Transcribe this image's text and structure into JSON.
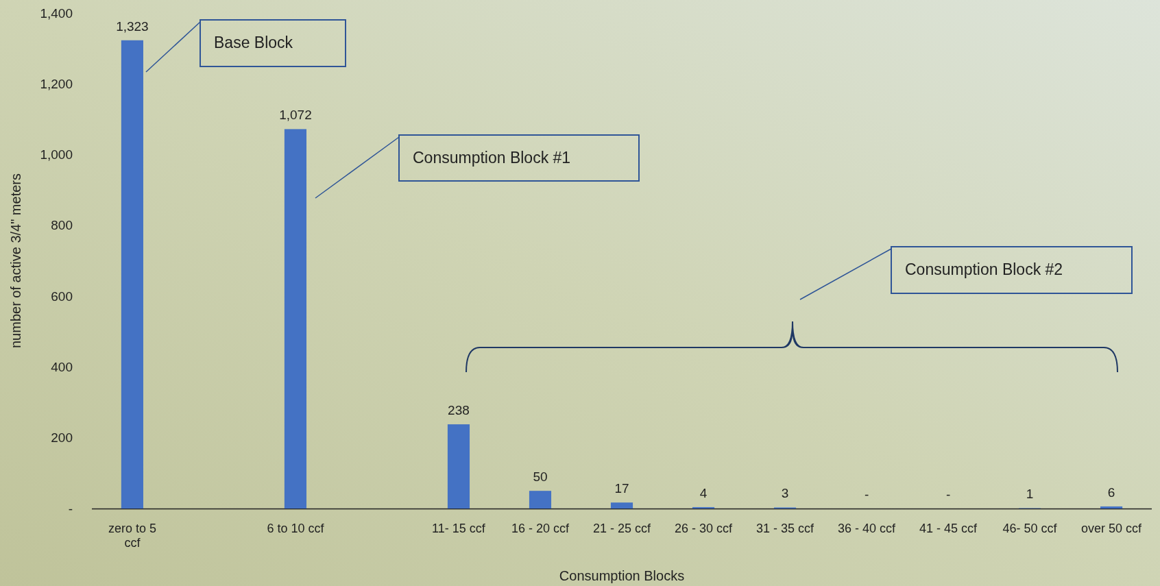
{
  "chart_data": {
    "type": "bar",
    "xlabel": "Consumption Blocks",
    "ylabel": "number of active 3/4\" meters",
    "categories": [
      "zero to 5 ccf",
      null,
      "6 to 10 ccf",
      null,
      "11- 15 ccf",
      "16 - 20 ccf",
      "21 - 25 ccf",
      "26 - 30 ccf",
      "31 - 35  ccf",
      "36 - 40 ccf",
      "41 - 45 ccf",
      "46- 50 ccf",
      "over 50 ccf"
    ],
    "values": [
      1323,
      null,
      1072,
      null,
      238,
      50,
      17,
      4,
      3,
      0,
      0,
      1,
      6
    ],
    "value_labels": [
      "1,323",
      null,
      "1,072",
      null,
      "238",
      "50",
      "17",
      "4",
      "3",
      "-",
      "-",
      "1",
      "6"
    ],
    "color": "#4472c4",
    "ylim": [
      0,
      1400
    ],
    "yticks": [
      {
        "value": 0,
        "label": "-"
      },
      200,
      400,
      600,
      800,
      {
        "value": 1000,
        "label": "1,000"
      },
      {
        "value": 1200,
        "label": "1,200"
      },
      {
        "value": 1400,
        "label": "1,400"
      }
    ],
    "annotations": [
      "Base Block",
      "Consumption Block #1",
      "Consumption Block #2"
    ]
  }
}
